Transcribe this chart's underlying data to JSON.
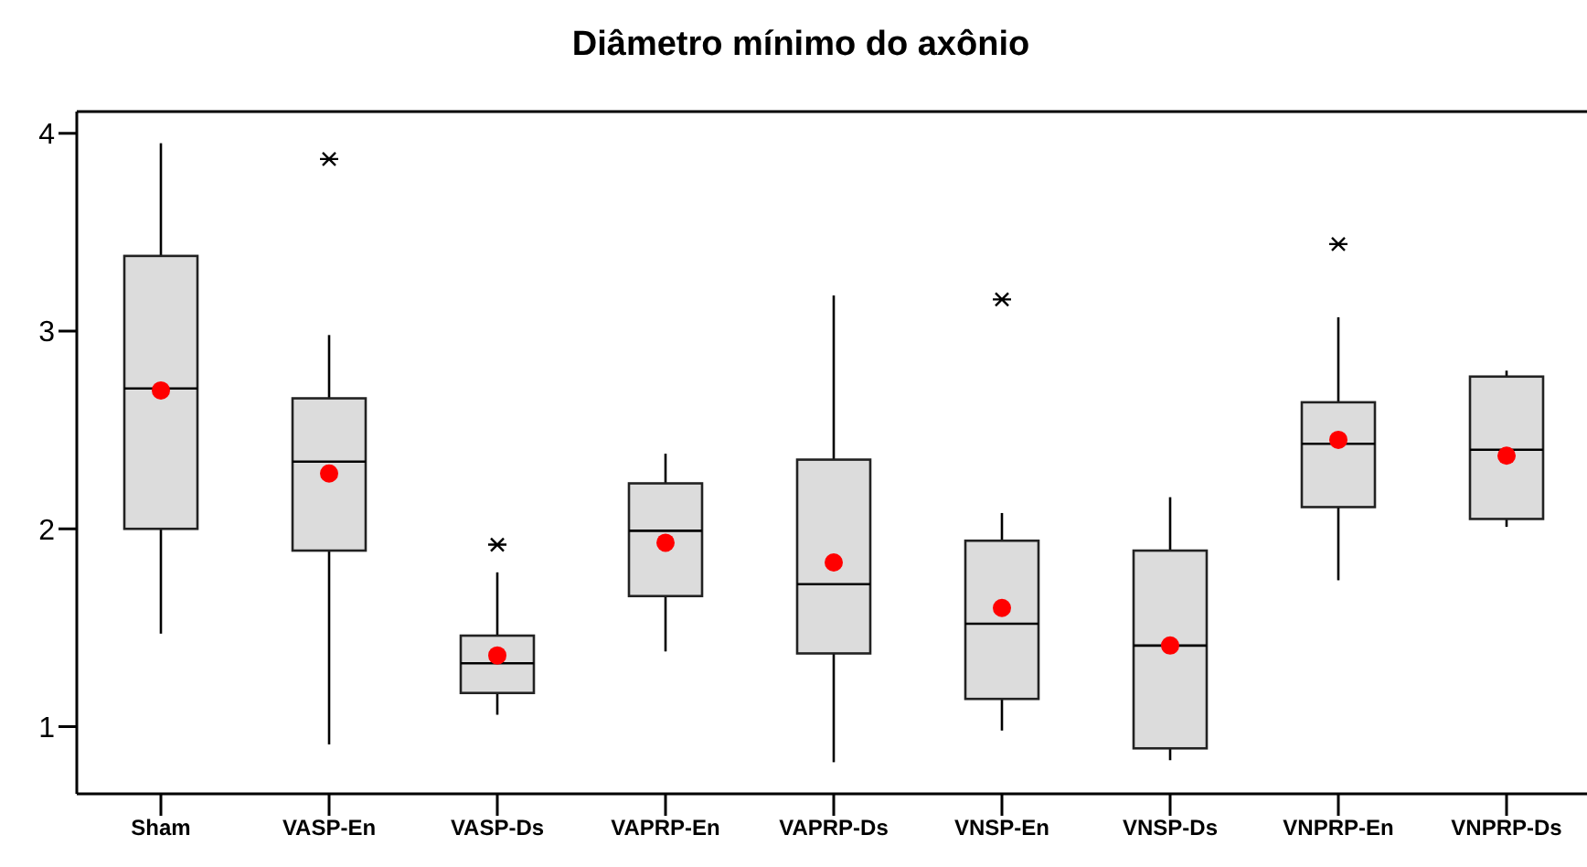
{
  "chart_data": {
    "type": "box",
    "title": "Diâmetro mínimo do axônio",
    "categories": [
      "Sham",
      "VASP-En",
      "VASP-Ds",
      "VAPRP-En",
      "VAPRP-Ds",
      "VNSP-En",
      "VNSP-Ds",
      "VNPRP-En",
      "VNPRP-Ds"
    ],
    "ylim": [
      0.66,
      4.11
    ],
    "yticks": [
      1,
      2,
      3,
      4
    ],
    "grid": false,
    "legend": false,
    "series": [
      {
        "color": "#dcdcdc",
        "boxes": [
          {
            "low": 1.47,
            "q1": 2.0,
            "median": 2.71,
            "q3": 3.38,
            "high": 3.95
          },
          {
            "low": 0.91,
            "q1": 1.89,
            "median": 2.34,
            "q3": 2.66,
            "high": 2.98,
            "outliers": [
              3.87
            ]
          },
          {
            "low": 1.06,
            "q1": 1.17,
            "median": 1.32,
            "q3": 1.46,
            "high": 1.78,
            "outliers": [
              1.92
            ]
          },
          {
            "low": 1.38,
            "q1": 1.66,
            "median": 1.99,
            "q3": 2.23,
            "high": 2.38
          },
          {
            "low": 0.82,
            "q1": 1.37,
            "median": 1.72,
            "q3": 2.35,
            "high": 3.18
          },
          {
            "low": 0.98,
            "q1": 1.14,
            "median": 1.52,
            "q3": 1.94,
            "high": 2.08,
            "outliers": [
              3.16
            ]
          },
          {
            "low": 0.83,
            "q1": 0.89,
            "median": 1.41,
            "q3": 1.89,
            "high": 2.16
          },
          {
            "low": 1.74,
            "q1": 2.11,
            "median": 2.43,
            "q3": 2.64,
            "high": 3.07,
            "outliers": [
              3.44
            ]
          },
          {
            "low": 2.01,
            "q1": 2.05,
            "median": 2.4,
            "q3": 2.77,
            "high": 2.8
          }
        ]
      },
      {
        "type": "scatter",
        "color": "#ff0000",
        "marker": "circle",
        "x": [
          "Sham",
          "VASP-En",
          "VASP-Ds",
          "VAPRP-En",
          "VAPRP-Ds",
          "VNSP-En",
          "VNSP-Ds",
          "VNPRP-En",
          "VNPRP-Ds"
        ],
        "values": [
          2.7,
          2.28,
          1.36,
          1.93,
          1.83,
          1.6,
          1.41,
          2.45,
          2.37
        ]
      }
    ]
  }
}
